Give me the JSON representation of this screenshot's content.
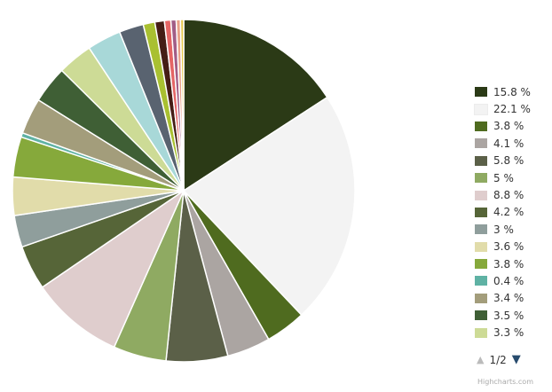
{
  "chart_data": {
    "type": "pie",
    "values": [
      15.8,
      22.1,
      3.8,
      4.1,
      5.8,
      5,
      8.8,
      4.2,
      3,
      3.6,
      3.8,
      0.4,
      3.4,
      3.5,
      3.3,
      3.2,
      2.3,
      1.1,
      0.9,
      0.6,
      0.5,
      0.4,
      0.3
    ],
    "colors": [
      "#2b3a16",
      "#f3f3f3",
      "#4f6b1f",
      "#aba5a2",
      "#5b6048",
      "#8faa62",
      "#dfcdcd",
      "#566538",
      "#8f9e9c",
      "#e1dcaa",
      "#86a93b",
      "#5fb2a4",
      "#a39d7b",
      "#3f5f35",
      "#cddb96",
      "#a8d8d8",
      "#596370",
      "#a9c031",
      "#451d15",
      "#e46565",
      "#a25d86",
      "#e9a089",
      "#e7c94d"
    ],
    "legend": [
      {
        "label": "15.8 %",
        "color": "#2b3a16"
      },
      {
        "label": "22.1 %",
        "color": "#f3f3f3"
      },
      {
        "label": "3.8 %",
        "color": "#4f6b1f"
      },
      {
        "label": "4.1 %",
        "color": "#aba5a2"
      },
      {
        "label": "5.8 %",
        "color": "#5b6048"
      },
      {
        "label": "5 %",
        "color": "#8faa62"
      },
      {
        "label": "8.8 %",
        "color": "#dfcdcd"
      },
      {
        "label": "4.2 %",
        "color": "#566538"
      },
      {
        "label": "3 %",
        "color": "#8f9e9c"
      },
      {
        "label": "3.6 %",
        "color": "#e1dcaa"
      },
      {
        "label": "3.8 %",
        "color": "#86a93b"
      },
      {
        "label": "0.4 %",
        "color": "#5fb2a4"
      },
      {
        "label": "3.4 %",
        "color": "#a39d7b"
      },
      {
        "label": "3.5 %",
        "color": "#3f5f35"
      },
      {
        "label": "3.3 %",
        "color": "#cddb96"
      }
    ],
    "legend_page": "1/2",
    "legend_placement": "right"
  },
  "credit": "Highcharts.com"
}
